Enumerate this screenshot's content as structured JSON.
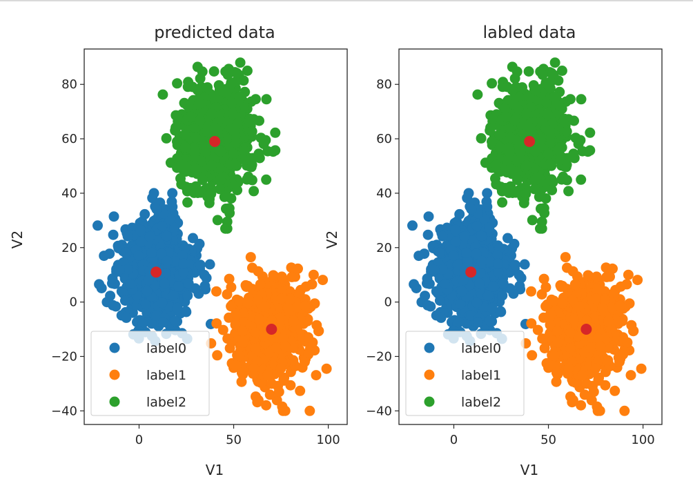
{
  "chart_data": [
    {
      "type": "scatter",
      "title": "predicted data",
      "xlabel": "V1",
      "ylabel": "V2",
      "xlim": [
        -29,
        110
      ],
      "ylim": [
        -45,
        93
      ],
      "xticks": [
        0,
        50,
        100
      ],
      "yticks": [
        -40,
        -20,
        0,
        20,
        40,
        60,
        80
      ],
      "grid": false,
      "legend_position": "lower-left",
      "series": [
        {
          "name": "label0",
          "color": "#1f77b4",
          "center": [
            9,
            11
          ],
          "spread": [
            10,
            10
          ],
          "approx_range_x": [
            -25,
            40
          ],
          "approx_range_y": [
            -22,
            40
          ]
        },
        {
          "name": "label1",
          "color": "#ff7f0e",
          "center": [
            70,
            -10
          ],
          "spread": [
            10,
            10
          ],
          "approx_range_x": [
            35,
            105
          ],
          "approx_range_y": [
            -40,
            26
          ]
        },
        {
          "name": "label2",
          "color": "#2ca02c",
          "center": [
            40,
            60
          ],
          "spread": [
            10,
            10
          ],
          "approx_range_x": [
            8,
            72
          ],
          "approx_range_y": [
            27,
            88
          ]
        }
      ],
      "centroids": {
        "color": "#d62728",
        "points": [
          [
            9,
            11
          ],
          [
            70,
            -10
          ],
          [
            40,
            59
          ]
        ]
      }
    },
    {
      "type": "scatter",
      "title": "labled data",
      "xlabel": "V1",
      "ylabel": "V2",
      "xlim": [
        -29,
        110
      ],
      "ylim": [
        -45,
        93
      ],
      "xticks": [
        0,
        50,
        100
      ],
      "yticks": [
        -40,
        -20,
        0,
        20,
        40,
        60,
        80
      ],
      "grid": false,
      "legend_position": "lower-left",
      "series": [
        {
          "name": "label0",
          "color": "#1f77b4",
          "center": [
            9,
            11
          ],
          "spread": [
            10,
            10
          ],
          "approx_range_x": [
            -25,
            40
          ],
          "approx_range_y": [
            -22,
            40
          ]
        },
        {
          "name": "label1",
          "color": "#ff7f0e",
          "center": [
            70,
            -10
          ],
          "spread": [
            10,
            10
          ],
          "approx_range_x": [
            35,
            105
          ],
          "approx_range_y": [
            -40,
            26
          ]
        },
        {
          "name": "label2",
          "color": "#2ca02c",
          "center": [
            40,
            60
          ],
          "spread": [
            10,
            10
          ],
          "approx_range_x": [
            8,
            72
          ],
          "approx_range_y": [
            27,
            88
          ]
        }
      ],
      "centroids": {
        "color": "#d62728",
        "points": [
          [
            9,
            11
          ],
          [
            70,
            -10
          ],
          [
            40,
            59
          ]
        ]
      }
    }
  ]
}
